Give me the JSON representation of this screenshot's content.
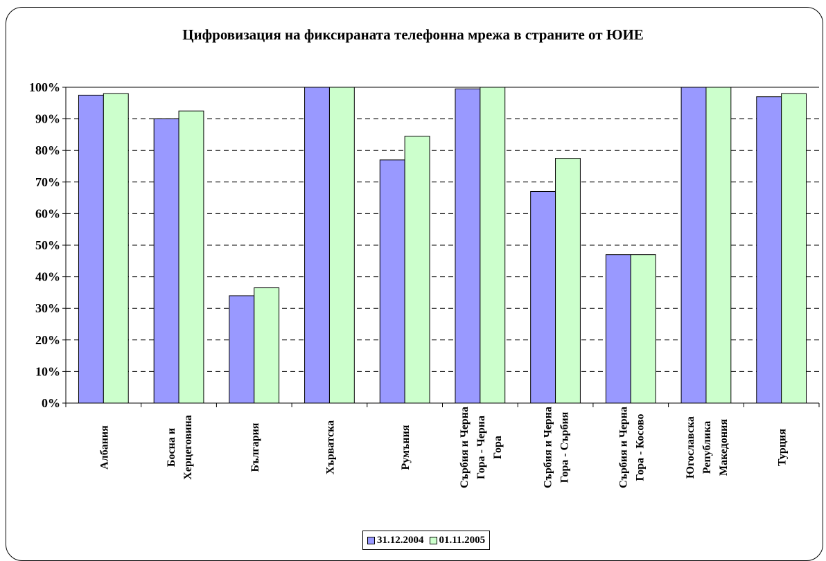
{
  "chart_data": {
    "type": "bar",
    "title": "Цифровизация на фиксираната телефонна мрежа в страните от ЮИЕ",
    "categories": [
      "Албания",
      "Босна и Херцеговина",
      "България",
      "Хърватска",
      "Румъния",
      "Сърбия и Черна Гора - Черна Гора",
      "Сърбия и Черна Гора - Сърбия",
      "Сърбия и Черна Гора - Косово",
      "Югославска Република Македония",
      "Турция"
    ],
    "category_label_lines": [
      [
        "Албания"
      ],
      [
        "Босна и",
        "Херцеговина"
      ],
      [
        "България"
      ],
      [
        "Хърватска"
      ],
      [
        "Румъния"
      ],
      [
        "Сърбия и Черна",
        "Гора - Черна",
        "Гора"
      ],
      [
        "Сърбия и Черна",
        "Гора - Сърбия"
      ],
      [
        "Сърбия и Черна",
        "Гора - Косово"
      ],
      [
        "Югославска",
        "Република",
        "Македония"
      ],
      [
        "Турция"
      ]
    ],
    "series": [
      {
        "name": "31.12.2004",
        "color": "#9999ff",
        "values": [
          97.5,
          90,
          34,
          100,
          77,
          99.5,
          67,
          47,
          100,
          97
        ]
      },
      {
        "name": "01.11.2005",
        "color": "#ccffcc",
        "values": [
          98,
          92.5,
          36.5,
          100,
          84.5,
          100,
          77.5,
          47,
          100,
          98
        ]
      }
    ],
    "ylim": [
      0,
      100
    ],
    "yticks": [
      0,
      10,
      20,
      30,
      40,
      50,
      60,
      70,
      80,
      90,
      100
    ],
    "ytick_labels": [
      "0%",
      "10%",
      "20%",
      "30%",
      "40%",
      "50%",
      "60%",
      "70%",
      "80%",
      "90%",
      "100%"
    ],
    "grid": "horizontal dashed",
    "legend_position": "bottom",
    "xlabel": "",
    "ylabel": ""
  }
}
